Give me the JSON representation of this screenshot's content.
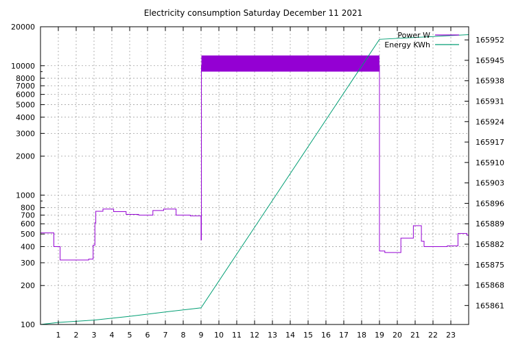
{
  "chart_data": {
    "type": "line",
    "title": "Electricity consumption Saturday December 11 2021",
    "xlabel": "",
    "ylabel": "",
    "xlim": [
      0,
      24
    ],
    "x_ticks": [
      1,
      2,
      3,
      4,
      5,
      6,
      7,
      8,
      9,
      10,
      11,
      12,
      13,
      14,
      15,
      16,
      17,
      18,
      19,
      20,
      21,
      22,
      23
    ],
    "y_scale": "log",
    "ylim": [
      100,
      20000
    ],
    "y_ticks": [
      100,
      200,
      300,
      400,
      500,
      600,
      700,
      800,
      1000,
      2000,
      3000,
      4000,
      5000,
      6000,
      7000,
      8000,
      10000,
      20000
    ],
    "y2lim": [
      165854.5,
      165956.5
    ],
    "y2_ticks": [
      165861,
      165868,
      165875,
      165882,
      165889,
      165896,
      165903,
      165910,
      165917,
      165924,
      165931,
      165938,
      165945,
      165952
    ],
    "grid": true,
    "legend_position": "top-right",
    "series": [
      {
        "name": "Power W",
        "axis": "left",
        "color": "#9400d3",
        "step": true,
        "points": [
          [
            0,
            510
          ],
          [
            0.75,
            510
          ],
          [
            0.75,
            400
          ],
          [
            1.1,
            400
          ],
          [
            1.1,
            315
          ],
          [
            2.7,
            315
          ],
          [
            2.7,
            320
          ],
          [
            2.95,
            320
          ],
          [
            2.95,
            410
          ],
          [
            3.05,
            410
          ],
          [
            3.05,
            610
          ],
          [
            3.1,
            610
          ],
          [
            3.1,
            750
          ],
          [
            3.5,
            750
          ],
          [
            3.5,
            780
          ],
          [
            4.1,
            780
          ],
          [
            4.1,
            745
          ],
          [
            4.8,
            745
          ],
          [
            4.8,
            710
          ],
          [
            5.5,
            710
          ],
          [
            5.5,
            700
          ],
          [
            6.3,
            700
          ],
          [
            6.3,
            760
          ],
          [
            6.9,
            760
          ],
          [
            6.9,
            780
          ],
          [
            7.6,
            780
          ],
          [
            7.6,
            700
          ],
          [
            8.4,
            700
          ],
          [
            8.4,
            690
          ],
          [
            9.0,
            690
          ],
          [
            9.0,
            450
          ],
          [
            9.02,
            450
          ],
          [
            9.02,
            10000
          ],
          [
            19.0,
            10000
          ],
          [
            19.0,
            370
          ],
          [
            19.3,
            370
          ],
          [
            19.3,
            360
          ],
          [
            20.2,
            360
          ],
          [
            20.2,
            465
          ],
          [
            20.9,
            465
          ],
          [
            20.9,
            580
          ],
          [
            21.35,
            580
          ],
          [
            21.35,
            440
          ],
          [
            21.5,
            440
          ],
          [
            21.5,
            400
          ],
          [
            22.8,
            400
          ],
          [
            22.8,
            405
          ],
          [
            23.4,
            405
          ],
          [
            23.4,
            505
          ],
          [
            23.9,
            505
          ],
          [
            23.9,
            490
          ],
          [
            24,
            490
          ]
        ],
        "band": {
          "x_start": 9.02,
          "x_end": 19.0,
          "y_low": 9000,
          "y_high": 12000
        }
      },
      {
        "name": "Energy KWh",
        "axis": "right",
        "color": "#009e73",
        "step": false,
        "points": [
          [
            0,
            165854.5
          ],
          [
            1,
            165855.2
          ],
          [
            3,
            165856.0
          ],
          [
            5,
            165857.3
          ],
          [
            7,
            165858.8
          ],
          [
            9,
            165860.2
          ],
          [
            19,
            165952.2
          ],
          [
            24,
            165953.8
          ]
        ]
      }
    ]
  }
}
